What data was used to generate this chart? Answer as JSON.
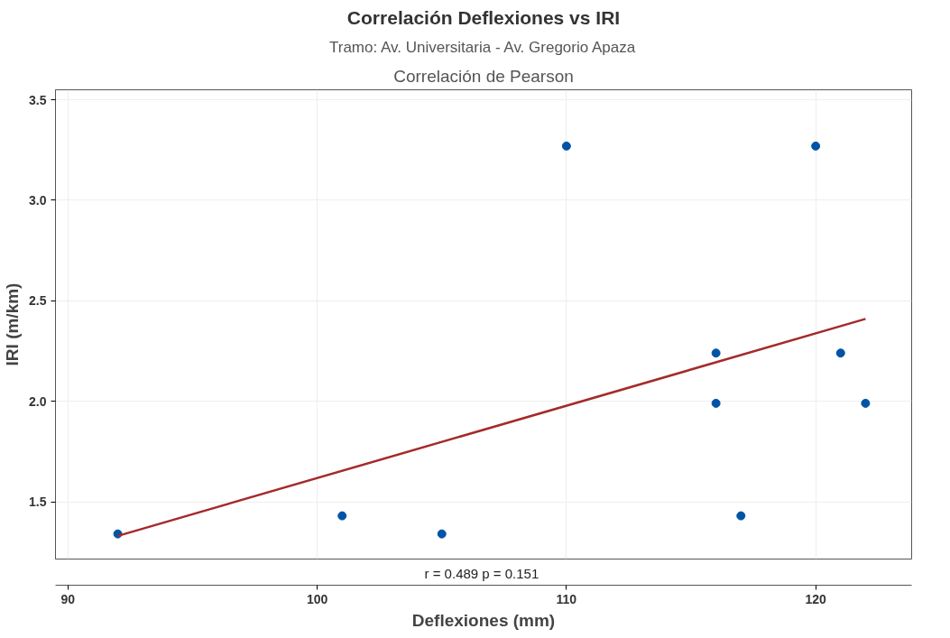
{
  "chart_data": {
    "type": "scatter",
    "title": "Correlación Deflexiones vs IRI",
    "subtitle": "Tramo: Av. Universitaria - Av. Gregorio Apaza",
    "xlabel": "Deflexiones (mm)",
    "ylabel": "IRI (m/km)",
    "series": [
      {
        "color": "#0054a6",
        "marker": "circle",
        "x": [
          92,
          101,
          105,
          110,
          116,
          116,
          117,
          120,
          121,
          122
        ],
        "values": [
          1.34,
          1.43,
          1.34,
          3.27,
          2.24,
          1.99,
          1.43,
          3.27,
          2.24,
          1.99
        ]
      },
      {
        "type": "line",
        "marker": "none",
        "color": "#a52a2a",
        "x": [
          92,
          122
        ],
        "values": [
          1.33,
          2.41
        ]
      }
    ],
    "annotations": [
      "Correlación de Pearson",
      "r = 0.489  p = 0.151"
    ],
    "xlim": [
      89.5,
      123.85
    ],
    "xticks": [
      90,
      100,
      110,
      120
    ],
    "ylim": [
      1.215,
      3.55
    ],
    "yticks": [
      {
        "value": 1.5,
        "label": "1.5"
      },
      {
        "value": 2.0,
        "label": "2.0"
      },
      {
        "value": 2.5,
        "label": "2.5"
      },
      {
        "value": 3.0,
        "label": "3.0"
      },
      {
        "value": 3.5,
        "label": "3.5"
      }
    ],
    "grid": true,
    "line_style": "solid"
  }
}
